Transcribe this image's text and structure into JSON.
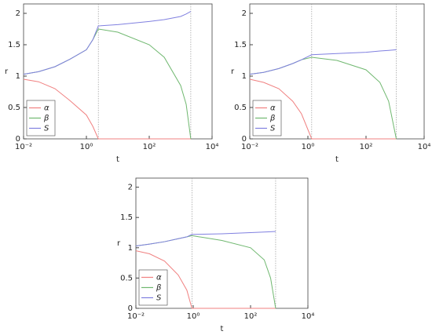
{
  "chart_data": [
    {
      "type": "line",
      "xlabel": "t",
      "ylabel": "r",
      "xscale": "log",
      "xlim": [
        0.01,
        10000
      ],
      "ylim": [
        0,
        2.15
      ],
      "xticks": [
        {
          "value": 0.01,
          "label": "10⁻²"
        },
        {
          "value": 1,
          "label": "10⁰"
        },
        {
          "value": 100,
          "label": "10²"
        },
        {
          "value": 10000,
          "label": "10⁴"
        }
      ],
      "yticks": [
        0,
        0.5,
        1,
        1.5,
        2
      ],
      "legend": "lower left",
      "vlines": [
        2.4,
        2100
      ],
      "x": [
        0.01,
        0.03,
        0.1,
        0.3,
        1,
        1.6,
        2.4,
        10,
        100,
        300,
        1000,
        1500,
        2100
      ],
      "series": [
        {
          "name": "α",
          "color": "#f08080",
          "values": [
            0.95,
            0.91,
            0.8,
            0.61,
            0.38,
            0.2,
            0,
            0,
            0,
            0,
            0,
            0,
            0
          ]
        },
        {
          "name": "β",
          "color": "#70b870",
          "values": [
            1.03,
            1.07,
            1.15,
            1.27,
            1.42,
            1.58,
            1.75,
            1.7,
            1.5,
            1.3,
            0.85,
            0.55,
            0
          ]
        },
        {
          "name": "S",
          "color": "#8080e0",
          "values": [
            1.03,
            1.07,
            1.15,
            1.27,
            1.42,
            1.58,
            1.8,
            1.82,
            1.87,
            1.9,
            1.95,
            1.99,
            2.03
          ]
        }
      ]
    },
    {
      "type": "line",
      "xlabel": "t",
      "ylabel": "r",
      "xscale": "log",
      "xlim": [
        0.01,
        10000
      ],
      "ylim": [
        0,
        2.15
      ],
      "xticks": [
        {
          "value": 0.01,
          "label": "10⁻²"
        },
        {
          "value": 1,
          "label": "10⁰"
        },
        {
          "value": 100,
          "label": "10²"
        },
        {
          "value": 10000,
          "label": "10⁴"
        }
      ],
      "yticks": [
        0,
        0.5,
        1,
        1.5,
        2
      ],
      "legend": "lower left",
      "vlines": [
        1.35,
        1100
      ],
      "x": [
        0.01,
        0.03,
        0.1,
        0.3,
        0.6,
        1.35,
        10,
        100,
        300,
        600,
        1100
      ],
      "series": [
        {
          "name": "α",
          "color": "#f08080",
          "values": [
            0.95,
            0.9,
            0.8,
            0.6,
            0.4,
            0,
            0,
            0,
            0,
            0,
            0
          ]
        },
        {
          "name": "β",
          "color": "#70b870",
          "values": [
            1.03,
            1.06,
            1.12,
            1.2,
            1.26,
            1.3,
            1.25,
            1.1,
            0.9,
            0.6,
            0
          ]
        },
        {
          "name": "S",
          "color": "#8080e0",
          "values": [
            1.03,
            1.06,
            1.12,
            1.2,
            1.26,
            1.34,
            1.36,
            1.38,
            1.4,
            1.41,
            1.42
          ]
        }
      ]
    },
    {
      "type": "line",
      "xlabel": "t",
      "ylabel": "r",
      "xscale": "log",
      "xlim": [
        0.01,
        10000
      ],
      "ylim": [
        0,
        2.15
      ],
      "xticks": [
        {
          "value": 0.01,
          "label": "10⁻²"
        },
        {
          "value": 1,
          "label": "10⁰"
        },
        {
          "value": 100,
          "label": "10²"
        },
        {
          "value": 10000,
          "label": "10⁴"
        }
      ],
      "yticks": [
        0,
        0.5,
        1,
        1.5,
        2
      ],
      "legend": "lower left",
      "vlines": [
        0.9,
        750
      ],
      "x": [
        0.01,
        0.03,
        0.1,
        0.3,
        0.6,
        0.9,
        10,
        100,
        300,
        500,
        750
      ],
      "series": [
        {
          "name": "α",
          "color": "#f08080",
          "values": [
            0.95,
            0.9,
            0.78,
            0.55,
            0.3,
            0,
            0,
            0,
            0,
            0,
            0
          ]
        },
        {
          "name": "β",
          "color": "#70b870",
          "values": [
            1.03,
            1.06,
            1.1,
            1.15,
            1.18,
            1.2,
            1.12,
            1.0,
            0.8,
            0.5,
            0
          ]
        },
        {
          "name": "S",
          "color": "#8080e0",
          "values": [
            1.03,
            1.06,
            1.1,
            1.15,
            1.18,
            1.22,
            1.23,
            1.25,
            1.26,
            1.265,
            1.27
          ]
        }
      ]
    }
  ]
}
